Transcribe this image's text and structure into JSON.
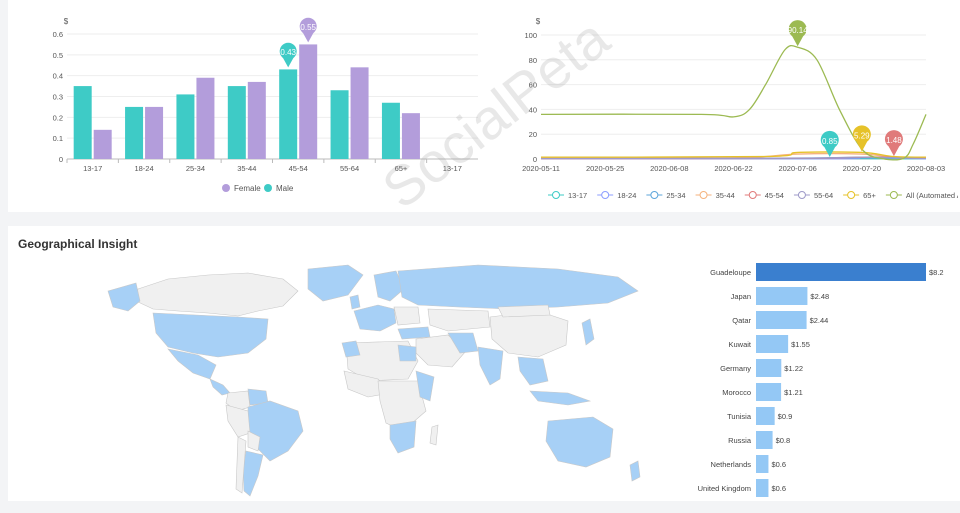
{
  "watermark": "SocialPeta",
  "geo_title": "Geographical Insight",
  "chart_data": [
    {
      "type": "bar",
      "ylabel": "$",
      "ylim": [
        0,
        0.6
      ],
      "yticks": [
        "0",
        "0.1",
        "0.2",
        "0.3",
        "0.4",
        "0.5",
        "0.6"
      ],
      "categories": [
        "13-17",
        "18-24",
        "25-34",
        "35-44",
        "45-54",
        "55-64",
        "65+",
        "13-17"
      ],
      "series": [
        {
          "name": "Male",
          "color": "#3ecbc6",
          "values": [
            0.35,
            0.25,
            0.31,
            0.35,
            0.43,
            0.33,
            0.27,
            null
          ]
        },
        {
          "name": "Female",
          "color": "#b39ddb",
          "values": [
            0.14,
            0.25,
            0.39,
            0.37,
            0.55,
            0.44,
            0.22,
            null
          ]
        }
      ],
      "annotations": [
        {
          "series": "Male",
          "category": "45-54",
          "label": "0.43"
        },
        {
          "series": "Female",
          "category": "45-54",
          "label": "0.55"
        }
      ],
      "legend_order": [
        "Female",
        "Male"
      ],
      "legend": "bottom"
    },
    {
      "type": "line",
      "ylabel": "$",
      "ylim": [
        0,
        100
      ],
      "yticks": [
        "0",
        "20",
        "40",
        "60",
        "80",
        "100"
      ],
      "xticks": [
        "2020-05-11",
        "2020-05-25",
        "2020-06-08",
        "2020-06-22",
        "2020-07-06",
        "2020-07-20",
        "2020-08-03"
      ],
      "series": [
        {
          "name": "13-17",
          "color": "#3ecbc6",
          "points": [
            [
              0,
              0.3
            ],
            [
              8,
              0.3
            ],
            [
              9,
              0.85
            ],
            [
              10,
              0.3
            ],
            [
              12,
              0.2
            ]
          ]
        },
        {
          "name": "18-24",
          "color": "#8c9eff",
          "points": [
            [
              0,
              0.2
            ],
            [
              9,
              0.2
            ],
            [
              10,
              1
            ],
            [
              12,
              0.2
            ]
          ]
        },
        {
          "name": "25-34",
          "color": "#5da5da",
          "points": [
            [
              0,
              0.5
            ],
            [
              7,
              0.6
            ],
            [
              10,
              1
            ],
            [
              12,
              0.5
            ]
          ]
        },
        {
          "name": "35-44",
          "color": "#f5b27c",
          "points": [
            [
              0,
              1
            ],
            [
              6,
              1
            ],
            [
              8,
              4
            ],
            [
              10,
              4
            ],
            [
              11,
              1.5
            ],
            [
              12,
              1
            ]
          ]
        },
        {
          "name": "45-54",
          "color": "#e07a7a",
          "points": [
            [
              0,
              0.3
            ],
            [
              8,
              0.5
            ],
            [
              10,
              1.48
            ],
            [
              11,
              1.48
            ],
            [
              12,
              0.5
            ]
          ]
        },
        {
          "name": "55-64",
          "color": "#9e9ac8",
          "points": [
            [
              0,
              0.4
            ],
            [
              8,
              0.6
            ],
            [
              10,
              1.5
            ],
            [
              12,
              0.4
            ]
          ]
        },
        {
          "name": "65+",
          "color": "#e6c229",
          "points": [
            [
              0,
              1.5
            ],
            [
              7,
              2
            ],
            [
              8,
              5.29
            ],
            [
              10,
              5.29
            ],
            [
              11,
              2
            ],
            [
              12,
              1.5
            ]
          ]
        },
        {
          "name": "All (Automated App A",
          "color": "#9cba52",
          "points": [
            [
              0,
              36
            ],
            [
              5,
              36
            ],
            [
              6,
              34
            ],
            [
              6.5,
              40
            ],
            [
              7,
              60
            ],
            [
              7.6,
              88
            ],
            [
              8,
              90.14
            ],
            [
              8.6,
              80
            ],
            [
              9.3,
              40
            ],
            [
              10,
              8
            ],
            [
              10.6,
              0.5
            ],
            [
              11.3,
              0.5
            ],
            [
              11.6,
              12
            ],
            [
              12,
              36
            ]
          ]
        }
      ],
      "x_domain": [
        0,
        12
      ],
      "annotations": [
        {
          "series": "All (Automated App A",
          "x": 8,
          "label": "90.14"
        },
        {
          "series": "13-17",
          "x": 9,
          "label": "0.85"
        },
        {
          "series": "65+",
          "x": 10,
          "label": "5.29"
        },
        {
          "series": "45-54",
          "x": 11,
          "label": "1.48"
        }
      ],
      "legend": "bottom"
    },
    {
      "type": "bar",
      "orientation": "horizontal",
      "categories": [
        "Guadeloupe",
        "Japan",
        "Qatar",
        "Kuwait",
        "Germany",
        "Morocco",
        "Tunisia",
        "Russia",
        "Netherlands",
        "United Kingdom"
      ],
      "values": [
        8.2,
        2.48,
        2.44,
        1.55,
        1.22,
        1.21,
        0.9,
        0.8,
        0.6,
        0.6
      ],
      "labels": [
        "$8.2",
        "$2.48",
        "$2.44",
        "$1.55",
        "$1.22",
        "$1.21",
        "$0.9",
        "$0.8",
        "$0.6",
        "$0.6"
      ],
      "colors": {
        "highlight": "#3a7fcf",
        "normal": "#94c8f5"
      }
    }
  ],
  "map": {
    "land_color": "#f0f0f0",
    "highlight_color": "#a7d0f6",
    "border_color": "#c8c8c8"
  }
}
